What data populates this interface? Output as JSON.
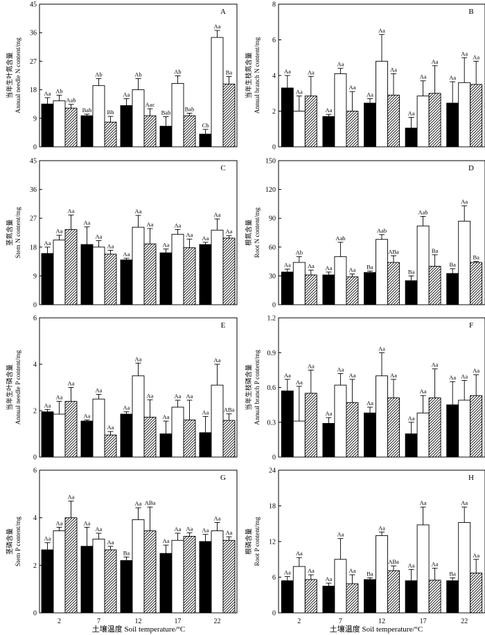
{
  "figure": {
    "x_title": "土壤温度 Soil temperature/°C",
    "categories": [
      "2",
      "7",
      "12",
      "17",
      "22"
    ]
  },
  "chart_data": [
    {
      "type": "bar",
      "panel": "A",
      "ylabel_zh": "当年生叶氮含量",
      "ylabel_en": "Annual needle N content/mg",
      "ylim": [
        0,
        45
      ],
      "yticks": [
        "0",
        "9",
        "18",
        "27",
        "36",
        "45"
      ],
      "categories": [
        "2",
        "7",
        "12",
        "17",
        "22"
      ],
      "series": [
        {
          "name": "black",
          "values": [
            13.5,
            9.8,
            13,
            6.5,
            4
          ],
          "errors": [
            2,
            0.5,
            2.2,
            3,
            1.5
          ],
          "labels": [
            "Aa",
            "Bab",
            "Aa",
            "Bab",
            "Cb"
          ]
        },
        {
          "name": "white",
          "values": [
            14.5,
            19.3,
            18,
            20,
            34.5
          ],
          "errors": [
            1.8,
            2.2,
            3.5,
            2.4,
            2.2
          ],
          "labels": [
            "Ab",
            "Ab",
            "Ab",
            "Ab",
            "Aa"
          ]
        },
        {
          "name": "hatched",
          "values": [
            12.2,
            7.8,
            9.8,
            9.8,
            19.8
          ],
          "errors": [
            1.2,
            1.8,
            2.2,
            0.8,
            2.4
          ],
          "labels": [
            "Aab",
            "Bb",
            "Aac",
            "Bab",
            "Ba"
          ]
        }
      ]
    },
    {
      "type": "bar",
      "panel": "B",
      "ylabel_zh": "当年生枝氮含量",
      "ylabel_en": "Annual branch N content/mg",
      "ylim": [
        0,
        8
      ],
      "yticks": [
        "0",
        "2",
        "4",
        "6",
        "8"
      ],
      "categories": [
        "2",
        "7",
        "12",
        "17",
        "22"
      ],
      "series": [
        {
          "name": "black",
          "values": [
            3.3,
            1.7,
            2.45,
            1.05,
            2.45
          ],
          "errors": [
            0.7,
            0.12,
            0.25,
            0.6,
            1.2
          ],
          "labels": [
            "Aa",
            "Aa",
            "Aa",
            "Aa",
            "Aa"
          ]
        },
        {
          "name": "white",
          "values": [
            2.0,
            4.1,
            4.8,
            2.85,
            3.6
          ],
          "errors": [
            0.85,
            0.3,
            1.5,
            0.85,
            1.4
          ],
          "labels": [
            "Aa",
            "Aa",
            "Aa",
            "Aa",
            "Aa"
          ]
        },
        {
          "name": "hatched",
          "values": [
            2.85,
            2.0,
            2.9,
            3.0,
            3.5
          ],
          "errors": [
            1.1,
            1.1,
            1.2,
            1.55,
            1.3
          ],
          "labels": [
            "Aa",
            "Aa",
            "Aa",
            "Aa",
            "Aa"
          ]
        }
      ]
    },
    {
      "type": "bar",
      "panel": "C",
      "ylabel_zh": "茎氮含量",
      "ylabel_en": "Stem N content/mg",
      "ylim": [
        0,
        45
      ],
      "yticks": [
        "0",
        "9",
        "18",
        "27",
        "36",
        "45"
      ],
      "categories": [
        "2",
        "7",
        "12",
        "17",
        "22"
      ],
      "series": [
        {
          "name": "black",
          "values": [
            16,
            18.8,
            14,
            16.2,
            18.8
          ],
          "errors": [
            2,
            5.5,
            0.5,
            1.2,
            0.7
          ],
          "labels": [
            "Aa",
            "Aa",
            "Aa",
            "Aa",
            "Aa"
          ]
        },
        {
          "name": "white",
          "values": [
            20.2,
            18,
            24.2,
            22,
            23.3
          ],
          "errors": [
            1.5,
            2,
            3.7,
            1.5,
            3.5
          ],
          "labels": [
            "Aa",
            "Aa",
            "Aa",
            "Aa",
            "Aa"
          ]
        },
        {
          "name": "hatched",
          "values": [
            23.5,
            15.8,
            19,
            17.8,
            20.8
          ],
          "errors": [
            4.5,
            1.2,
            4.8,
            2.7,
            0.8
          ],
          "labels": [
            "Aa",
            "Aa",
            "Aa",
            "Aa",
            "Aa"
          ]
        }
      ]
    },
    {
      "type": "bar",
      "panel": "D",
      "ylabel_zh": "根氮含量",
      "ylabel_en": "Root N content/mg",
      "ylim": [
        0,
        150
      ],
      "yticks": [
        "0",
        "30",
        "60",
        "90",
        "120",
        "150"
      ],
      "categories": [
        "2",
        "7",
        "12",
        "17",
        "22"
      ],
      "series": [
        {
          "name": "black",
          "values": [
            34,
            31,
            33.5,
            25,
            32.5
          ],
          "errors": [
            3,
            3,
            1.5,
            5,
            5
          ],
          "labels": [
            "Aa",
            "Aa",
            "Ba",
            "Ba",
            "Ba"
          ]
        },
        {
          "name": "white",
          "values": [
            44,
            50,
            68,
            82,
            87
          ],
          "errors": [
            6,
            15,
            5,
            10,
            16
          ],
          "labels": [
            "Ab",
            "Aab",
            "Aab",
            "Aab",
            "Aa"
          ]
        },
        {
          "name": "hatched",
          "values": [
            31,
            29,
            44,
            40,
            44
          ],
          "errors": [
            5,
            3,
            7,
            12,
            1
          ],
          "labels": [
            "Aa",
            "Aa",
            "ABa",
            "Ba",
            "Ba"
          ]
        }
      ]
    },
    {
      "type": "bar",
      "panel": "E",
      "ylabel_zh": "当年生叶磷含量",
      "ylabel_en": "Annual needle P content/mg",
      "ylim": [
        0,
        6
      ],
      "yticks": [
        "0",
        "2",
        "4",
        "6"
      ],
      "categories": [
        "2",
        "7",
        "12",
        "17",
        "22"
      ],
      "series": [
        {
          "name": "black",
          "values": [
            1.95,
            1.55,
            1.85,
            1.0,
            1.05
          ],
          "errors": [
            0.1,
            0.05,
            0.1,
            0.55,
            0.7
          ],
          "labels": [
            "Aa",
            "Aa",
            "Aa",
            "Aa",
            "Aa"
          ]
        },
        {
          "name": "white",
          "values": [
            1.85,
            2.5,
            3.5,
            2.15,
            3.1
          ],
          "errors": [
            0.55,
            0.2,
            0.55,
            0.3,
            0.9
          ],
          "labels": [
            "Aa",
            "Aa",
            "Aa",
            "Aa",
            "Aa"
          ]
        },
        {
          "name": "hatched",
          "values": [
            2.4,
            0.95,
            1.72,
            1.6,
            1.58
          ],
          "errors": [
            0.6,
            0.15,
            0.75,
            0.85,
            0.28
          ],
          "labels": [
            "Aa",
            "Aa",
            "Aa",
            "Aa",
            "ABa"
          ]
        }
      ]
    },
    {
      "type": "bar",
      "panel": "F",
      "ylabel_zh": "当年生枝磷含量",
      "ylabel_en": "Annual branch P content/mg",
      "ylim": [
        0,
        1.2
      ],
      "yticks": [
        "0",
        "0.3",
        "0.6",
        "0.9",
        "1.2"
      ],
      "categories": [
        "2",
        "7",
        "12",
        "17",
        "22"
      ],
      "series": [
        {
          "name": "black",
          "values": [
            0.57,
            0.29,
            0.38,
            0.2,
            0.45
          ],
          "errors": [
            0.1,
            0.05,
            0.05,
            0.1,
            0.2
          ],
          "labels": [
            "Aa",
            "Aa",
            "Aa",
            "Aa",
            "Aa"
          ]
        },
        {
          "name": "white",
          "values": [
            0.31,
            0.62,
            0.7,
            0.38,
            0.49
          ],
          "errors": [
            0.3,
            0.1,
            0.2,
            0.15,
            0.17
          ],
          "labels": [
            "Aa",
            "Aa",
            "Aa",
            "Aa",
            "Aa"
          ]
        },
        {
          "name": "hatched",
          "values": [
            0.55,
            0.47,
            0.51,
            0.51,
            0.53
          ],
          "errors": [
            0.2,
            0.2,
            0.16,
            0.25,
            0.18
          ],
          "labels": [
            "Aa",
            "Aa",
            "Aa",
            "Aa",
            "Aa"
          ]
        }
      ]
    },
    {
      "type": "bar",
      "panel": "G",
      "ylabel_zh": "茎磷含量",
      "ylabel_en": "Stem P content/mg",
      "ylim": [
        0,
        6
      ],
      "yticks": [
        "0",
        "2",
        "4",
        "6"
      ],
      "categories": [
        "2",
        "7",
        "12",
        "17",
        "22"
      ],
      "series": [
        {
          "name": "black",
          "values": [
            2.65,
            2.8,
            2.2,
            2.5,
            3.0
          ],
          "errors": [
            0.3,
            0.8,
            0.15,
            0.35,
            0.3
          ],
          "labels": [
            "Aa",
            "Aa",
            "Ba",
            "Aa",
            "Aa"
          ]
        },
        {
          "name": "white",
          "values": [
            3.45,
            3.1,
            3.92,
            3.05,
            3.45
          ],
          "errors": [
            0.15,
            0.25,
            0.5,
            0.3,
            0.35
          ],
          "labels": [
            "Aa",
            "Aa",
            "Aa",
            "Aa",
            "Aa"
          ]
        },
        {
          "name": "hatched",
          "values": [
            4.0,
            2.65,
            3.45,
            3.22,
            3.05
          ],
          "errors": [
            0.7,
            0.15,
            1.0,
            0.15,
            0.15
          ],
          "labels": [
            "Aa",
            "Aa",
            "ABa",
            "Aa",
            "Aa"
          ]
        }
      ]
    },
    {
      "type": "bar",
      "panel": "H",
      "ylabel_zh": "根磷含量",
      "ylabel_en": "Root P content/mg",
      "ylim": [
        0,
        24
      ],
      "yticks": [
        "0",
        "6",
        "12",
        "18",
        "24"
      ],
      "categories": [
        "2",
        "7",
        "12",
        "17",
        "22"
      ],
      "series": [
        {
          "name": "black",
          "values": [
            5.4,
            4.5,
            5.6,
            5.4,
            5.4
          ],
          "errors": [
            0.7,
            0.5,
            0.3,
            1.9,
            0.5
          ],
          "labels": [
            "Aa",
            "Aa",
            "Ba",
            "Aa",
            "Ba"
          ]
        },
        {
          "name": "white",
          "values": [
            7.8,
            9.0,
            13.0,
            14.8,
            15.2
          ],
          "errors": [
            1.5,
            3.5,
            0.6,
            3.0,
            2.6
          ],
          "labels": [
            "Aa",
            "Aa",
            "Aa",
            "Aa",
            "Aa"
          ]
        },
        {
          "name": "hatched",
          "values": [
            5.6,
            4.9,
            7.1,
            5.5,
            6.7
          ],
          "errors": [
            0.8,
            1.5,
            0.8,
            2.0,
            2.3
          ],
          "labels": [
            "Aa",
            "Aa",
            "ABa",
            "Aa",
            "Aa"
          ]
        }
      ]
    }
  ]
}
